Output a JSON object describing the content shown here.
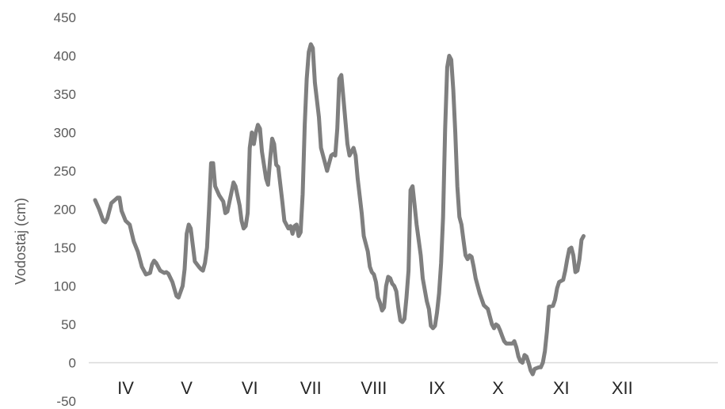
{
  "chart_data": {
    "type": "line",
    "ylabel": "Vodostaj (cm)",
    "xlabel": "",
    "ylim": [
      -50,
      450
    ],
    "yticks": [
      -50,
      0,
      50,
      100,
      150,
      200,
      250,
      300,
      350,
      400,
      450
    ],
    "x_range": [
      0,
      306
    ],
    "month_labels": [
      {
        "label": "IV",
        "x": 15
      },
      {
        "label": "V",
        "x": 45
      },
      {
        "label": "VI",
        "x": 76
      },
      {
        "label": "VII",
        "x": 106
      },
      {
        "label": "VIII",
        "x": 137
      },
      {
        "label": "IX",
        "x": 168
      },
      {
        "label": "X",
        "x": 198
      },
      {
        "label": "XI",
        "x": 229
      },
      {
        "label": "XII",
        "x": 259
      }
    ],
    "grid": false,
    "series": [
      {
        "color": "#7f7f7f",
        "points": [
          [
            0,
            212
          ],
          [
            2,
            200
          ],
          [
            4,
            185
          ],
          [
            5,
            183
          ],
          [
            6,
            188
          ],
          [
            8,
            208
          ],
          [
            11,
            215
          ],
          [
            12,
            215
          ],
          [
            13,
            198
          ],
          [
            15,
            185
          ],
          [
            17,
            180
          ],
          [
            19,
            158
          ],
          [
            21,
            145
          ],
          [
            23,
            125
          ],
          [
            25,
            115
          ],
          [
            27,
            117
          ],
          [
            28,
            128
          ],
          [
            29,
            133
          ],
          [
            30,
            130
          ],
          [
            32,
            120
          ],
          [
            34,
            117
          ],
          [
            35,
            118
          ],
          [
            36,
            116
          ],
          [
            38,
            105
          ],
          [
            40,
            87
          ],
          [
            41,
            85
          ],
          [
            43,
            100
          ],
          [
            44,
            122
          ],
          [
            45,
            168
          ],
          [
            46,
            180
          ],
          [
            47,
            175
          ],
          [
            49,
            132
          ],
          [
            51,
            125
          ],
          [
            52,
            122
          ],
          [
            53,
            120
          ],
          [
            54,
            130
          ],
          [
            55,
            150
          ],
          [
            56,
            200
          ],
          [
            57,
            260
          ],
          [
            58,
            260
          ],
          [
            59,
            230
          ],
          [
            61,
            218
          ],
          [
            63,
            210
          ],
          [
            64,
            195
          ],
          [
            65,
            197
          ],
          [
            67,
            222
          ],
          [
            68,
            235
          ],
          [
            69,
            230
          ],
          [
            71,
            205
          ],
          [
            72,
            185
          ],
          [
            73,
            175
          ],
          [
            74,
            178
          ],
          [
            75,
            195
          ],
          [
            76,
            280
          ],
          [
            77,
            300
          ],
          [
            78,
            285
          ],
          [
            79,
            300
          ],
          [
            80,
            310
          ],
          [
            81,
            305
          ],
          [
            82,
            275
          ],
          [
            84,
            240
          ],
          [
            85,
            232
          ],
          [
            86,
            265
          ],
          [
            87,
            292
          ],
          [
            88,
            285
          ],
          [
            89,
            258
          ],
          [
            90,
            255
          ],
          [
            92,
            210
          ],
          [
            93,
            185
          ],
          [
            95,
            175
          ],
          [
            96,
            178
          ],
          [
            97,
            168
          ],
          [
            98,
            178
          ],
          [
            99,
            180
          ],
          [
            100,
            165
          ],
          [
            101,
            170
          ],
          [
            102,
            220
          ],
          [
            103,
            310
          ],
          [
            104,
            370
          ],
          [
            105,
            405
          ],
          [
            106,
            415
          ],
          [
            107,
            410
          ],
          [
            108,
            365
          ],
          [
            110,
            320
          ],
          [
            111,
            280
          ],
          [
            113,
            260
          ],
          [
            114,
            250
          ],
          [
            116,
            270
          ],
          [
            117,
            272
          ],
          [
            118,
            270
          ],
          [
            119,
            305
          ],
          [
            120,
            370
          ],
          [
            121,
            375
          ],
          [
            122,
            345
          ],
          [
            124,
            285
          ],
          [
            125,
            270
          ],
          [
            126,
            275
          ],
          [
            127,
            280
          ],
          [
            128,
            270
          ],
          [
            129,
            240
          ],
          [
            131,
            195
          ],
          [
            132,
            165
          ],
          [
            134,
            145
          ],
          [
            135,
            125
          ],
          [
            136,
            118
          ],
          [
            137,
            115
          ],
          [
            138,
            105
          ],
          [
            139,
            85
          ],
          [
            140,
            78
          ],
          [
            141,
            68
          ],
          [
            142,
            72
          ],
          [
            143,
            100
          ],
          [
            144,
            112
          ],
          [
            145,
            110
          ],
          [
            146,
            103
          ],
          [
            147,
            100
          ],
          [
            148,
            93
          ],
          [
            149,
            72
          ],
          [
            150,
            55
          ],
          [
            151,
            53
          ],
          [
            152,
            57
          ],
          [
            153,
            85
          ],
          [
            154,
            120
          ],
          [
            155,
            225
          ],
          [
            156,
            230
          ],
          [
            157,
            205
          ],
          [
            158,
            180
          ],
          [
            160,
            140
          ],
          [
            161,
            110
          ],
          [
            163,
            80
          ],
          [
            164,
            70
          ],
          [
            165,
            48
          ],
          [
            166,
            45
          ],
          [
            167,
            48
          ],
          [
            168,
            65
          ],
          [
            169,
            90
          ],
          [
            170,
            130
          ],
          [
            171,
            190
          ],
          [
            172,
            305
          ],
          [
            173,
            385
          ],
          [
            174,
            400
          ],
          [
            175,
            395
          ],
          [
            176,
            355
          ],
          [
            177,
            300
          ],
          [
            178,
            230
          ],
          [
            179,
            190
          ],
          [
            180,
            180
          ],
          [
            181,
            160
          ],
          [
            182,
            140
          ],
          [
            183,
            135
          ],
          [
            184,
            140
          ],
          [
            185,
            138
          ],
          [
            186,
            125
          ],
          [
            187,
            110
          ],
          [
            189,
            90
          ],
          [
            191,
            75
          ],
          [
            193,
            70
          ],
          [
            194,
            60
          ],
          [
            195,
            50
          ],
          [
            196,
            45
          ],
          [
            197,
            50
          ],
          [
            198,
            48
          ],
          [
            199,
            42
          ],
          [
            200,
            35
          ],
          [
            201,
            28
          ],
          [
            202,
            25
          ],
          [
            205,
            25
          ],
          [
            206,
            28
          ],
          [
            207,
            20
          ],
          [
            208,
            8
          ],
          [
            209,
            2
          ],
          [
            210,
            0
          ],
          [
            211,
            10
          ],
          [
            212,
            8
          ],
          [
            213,
            0
          ],
          [
            214,
            -10
          ],
          [
            215,
            -15
          ],
          [
            216,
            -8
          ],
          [
            218,
            -6
          ],
          [
            219,
            -6
          ],
          [
            220,
            0
          ],
          [
            221,
            15
          ],
          [
            222,
            40
          ],
          [
            223,
            73
          ],
          [
            225,
            74
          ],
          [
            226,
            82
          ],
          [
            227,
            97
          ],
          [
            228,
            105
          ],
          [
            230,
            108
          ],
          [
            231,
            120
          ],
          [
            232,
            135
          ],
          [
            233,
            148
          ],
          [
            234,
            150
          ],
          [
            235,
            140
          ],
          [
            236,
            118
          ],
          [
            237,
            120
          ],
          [
            238,
            135
          ],
          [
            239,
            160
          ],
          [
            240,
            165
          ]
        ]
      }
    ]
  }
}
